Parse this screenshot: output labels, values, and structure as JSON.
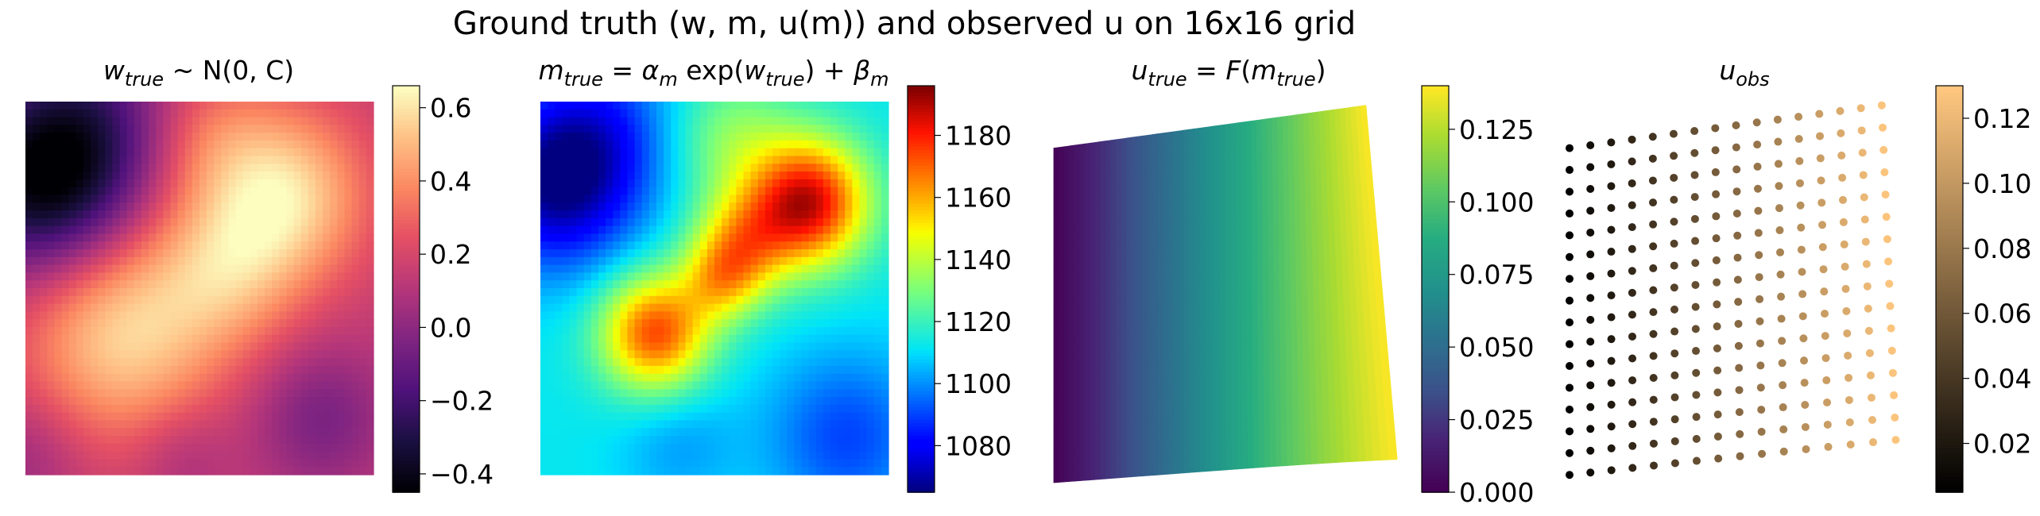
{
  "suptitle": "Ground truth (w, m, u(m)) and observed u on 16x16 grid",
  "chart_data": [
    {
      "type": "heatmap",
      "title": "w_true ~ N(0, C)",
      "colormap": "magma",
      "colorbar": {
        "min": -0.45,
        "max": 0.66,
        "ticks": [
          -0.4,
          -0.2,
          0.0,
          0.2,
          0.4,
          0.6
        ],
        "labels": [
          "−0.4",
          "−0.2",
          "0.0",
          "0.2",
          "0.4",
          "0.6"
        ]
      },
      "field": {
        "base": 0.15,
        "blobs": [
          {
            "x": 0.28,
            "y": 0.62,
            "r": 0.2,
            "a": 0.42
          },
          {
            "x": 0.75,
            "y": 0.25,
            "r": 0.16,
            "a": 0.42
          },
          {
            "x": 0.58,
            "y": 0.45,
            "r": 0.15,
            "a": 0.28
          },
          {
            "x": 0.52,
            "y": 0.1,
            "r": 0.14,
            "a": 0.18
          },
          {
            "x": 0.05,
            "y": 0.22,
            "r": 0.18,
            "a": -0.55
          },
          {
            "x": 0.2,
            "y": 0.05,
            "r": 0.18,
            "a": -0.25
          },
          {
            "x": 0.85,
            "y": 0.85,
            "r": 0.14,
            "a": -0.2
          },
          {
            "x": 0.0,
            "y": 0.95,
            "r": 0.12,
            "a": -0.12
          },
          {
            "x": 0.45,
            "y": 0.95,
            "r": 0.1,
            "a": -0.1
          }
        ]
      }
    },
    {
      "type": "heatmap",
      "title": "m_true = α_m exp(w_true) + β_m",
      "colormap": "jet",
      "colorbar": {
        "min": 1065,
        "max": 1196,
        "ticks": [
          1080,
          1100,
          1120,
          1140,
          1160,
          1180
        ],
        "labels": [
          "1080",
          "1100",
          "1120",
          "1140",
          "1160",
          "1180"
        ]
      },
      "field": {
        "base": 1112,
        "blobs": [
          {
            "x": 0.33,
            "y": 0.62,
            "r": 0.11,
            "a": 62
          },
          {
            "x": 0.77,
            "y": 0.27,
            "r": 0.12,
            "a": 75
          },
          {
            "x": 0.58,
            "y": 0.38,
            "r": 0.1,
            "a": 38
          },
          {
            "x": 0.52,
            "y": 0.48,
            "r": 0.08,
            "a": 30
          },
          {
            "x": 0.55,
            "y": 0.1,
            "r": 0.12,
            "a": 20
          },
          {
            "x": 0.05,
            "y": 0.22,
            "r": 0.16,
            "a": -45
          },
          {
            "x": 0.18,
            "y": 0.06,
            "r": 0.15,
            "a": -18
          },
          {
            "x": 0.88,
            "y": 0.9,
            "r": 0.16,
            "a": -22
          },
          {
            "x": 0.4,
            "y": 0.92,
            "r": 0.12,
            "a": -10
          }
        ]
      }
    },
    {
      "type": "heatmap",
      "title": "u_true = F(m_true)",
      "colormap": "viridis",
      "colorbar": {
        "min": 0.0,
        "max": 0.14,
        "ticks": [
          0.0,
          0.025,
          0.05,
          0.075,
          0.1,
          0.125
        ],
        "labels": [
          "0.000",
          "0.025",
          "0.050",
          "0.075",
          "0.100",
          "0.125"
        ]
      },
      "deformation": {
        "x_range": [
          0,
          1
        ],
        "top_left_y": 0.86,
        "top_right_y": 0.97,
        "bottom_right_y": 0.06,
        "bottom_right_x": 1.1
      },
      "u_range": [
        0.0,
        0.14
      ]
    },
    {
      "type": "scatter",
      "title": "u_obs",
      "colormap": "copper",
      "colorbar": {
        "min": 0.005,
        "max": 0.13,
        "ticks": [
          0.02,
          0.04,
          0.06,
          0.08,
          0.1,
          0.12
        ],
        "labels": [
          "0.02",
          "0.04",
          "0.06",
          "0.08",
          "0.10",
          "0.12"
        ]
      },
      "grid": {
        "nx": 16,
        "ny": 16
      },
      "u_range": [
        0.005,
        0.128
      ]
    }
  ]
}
